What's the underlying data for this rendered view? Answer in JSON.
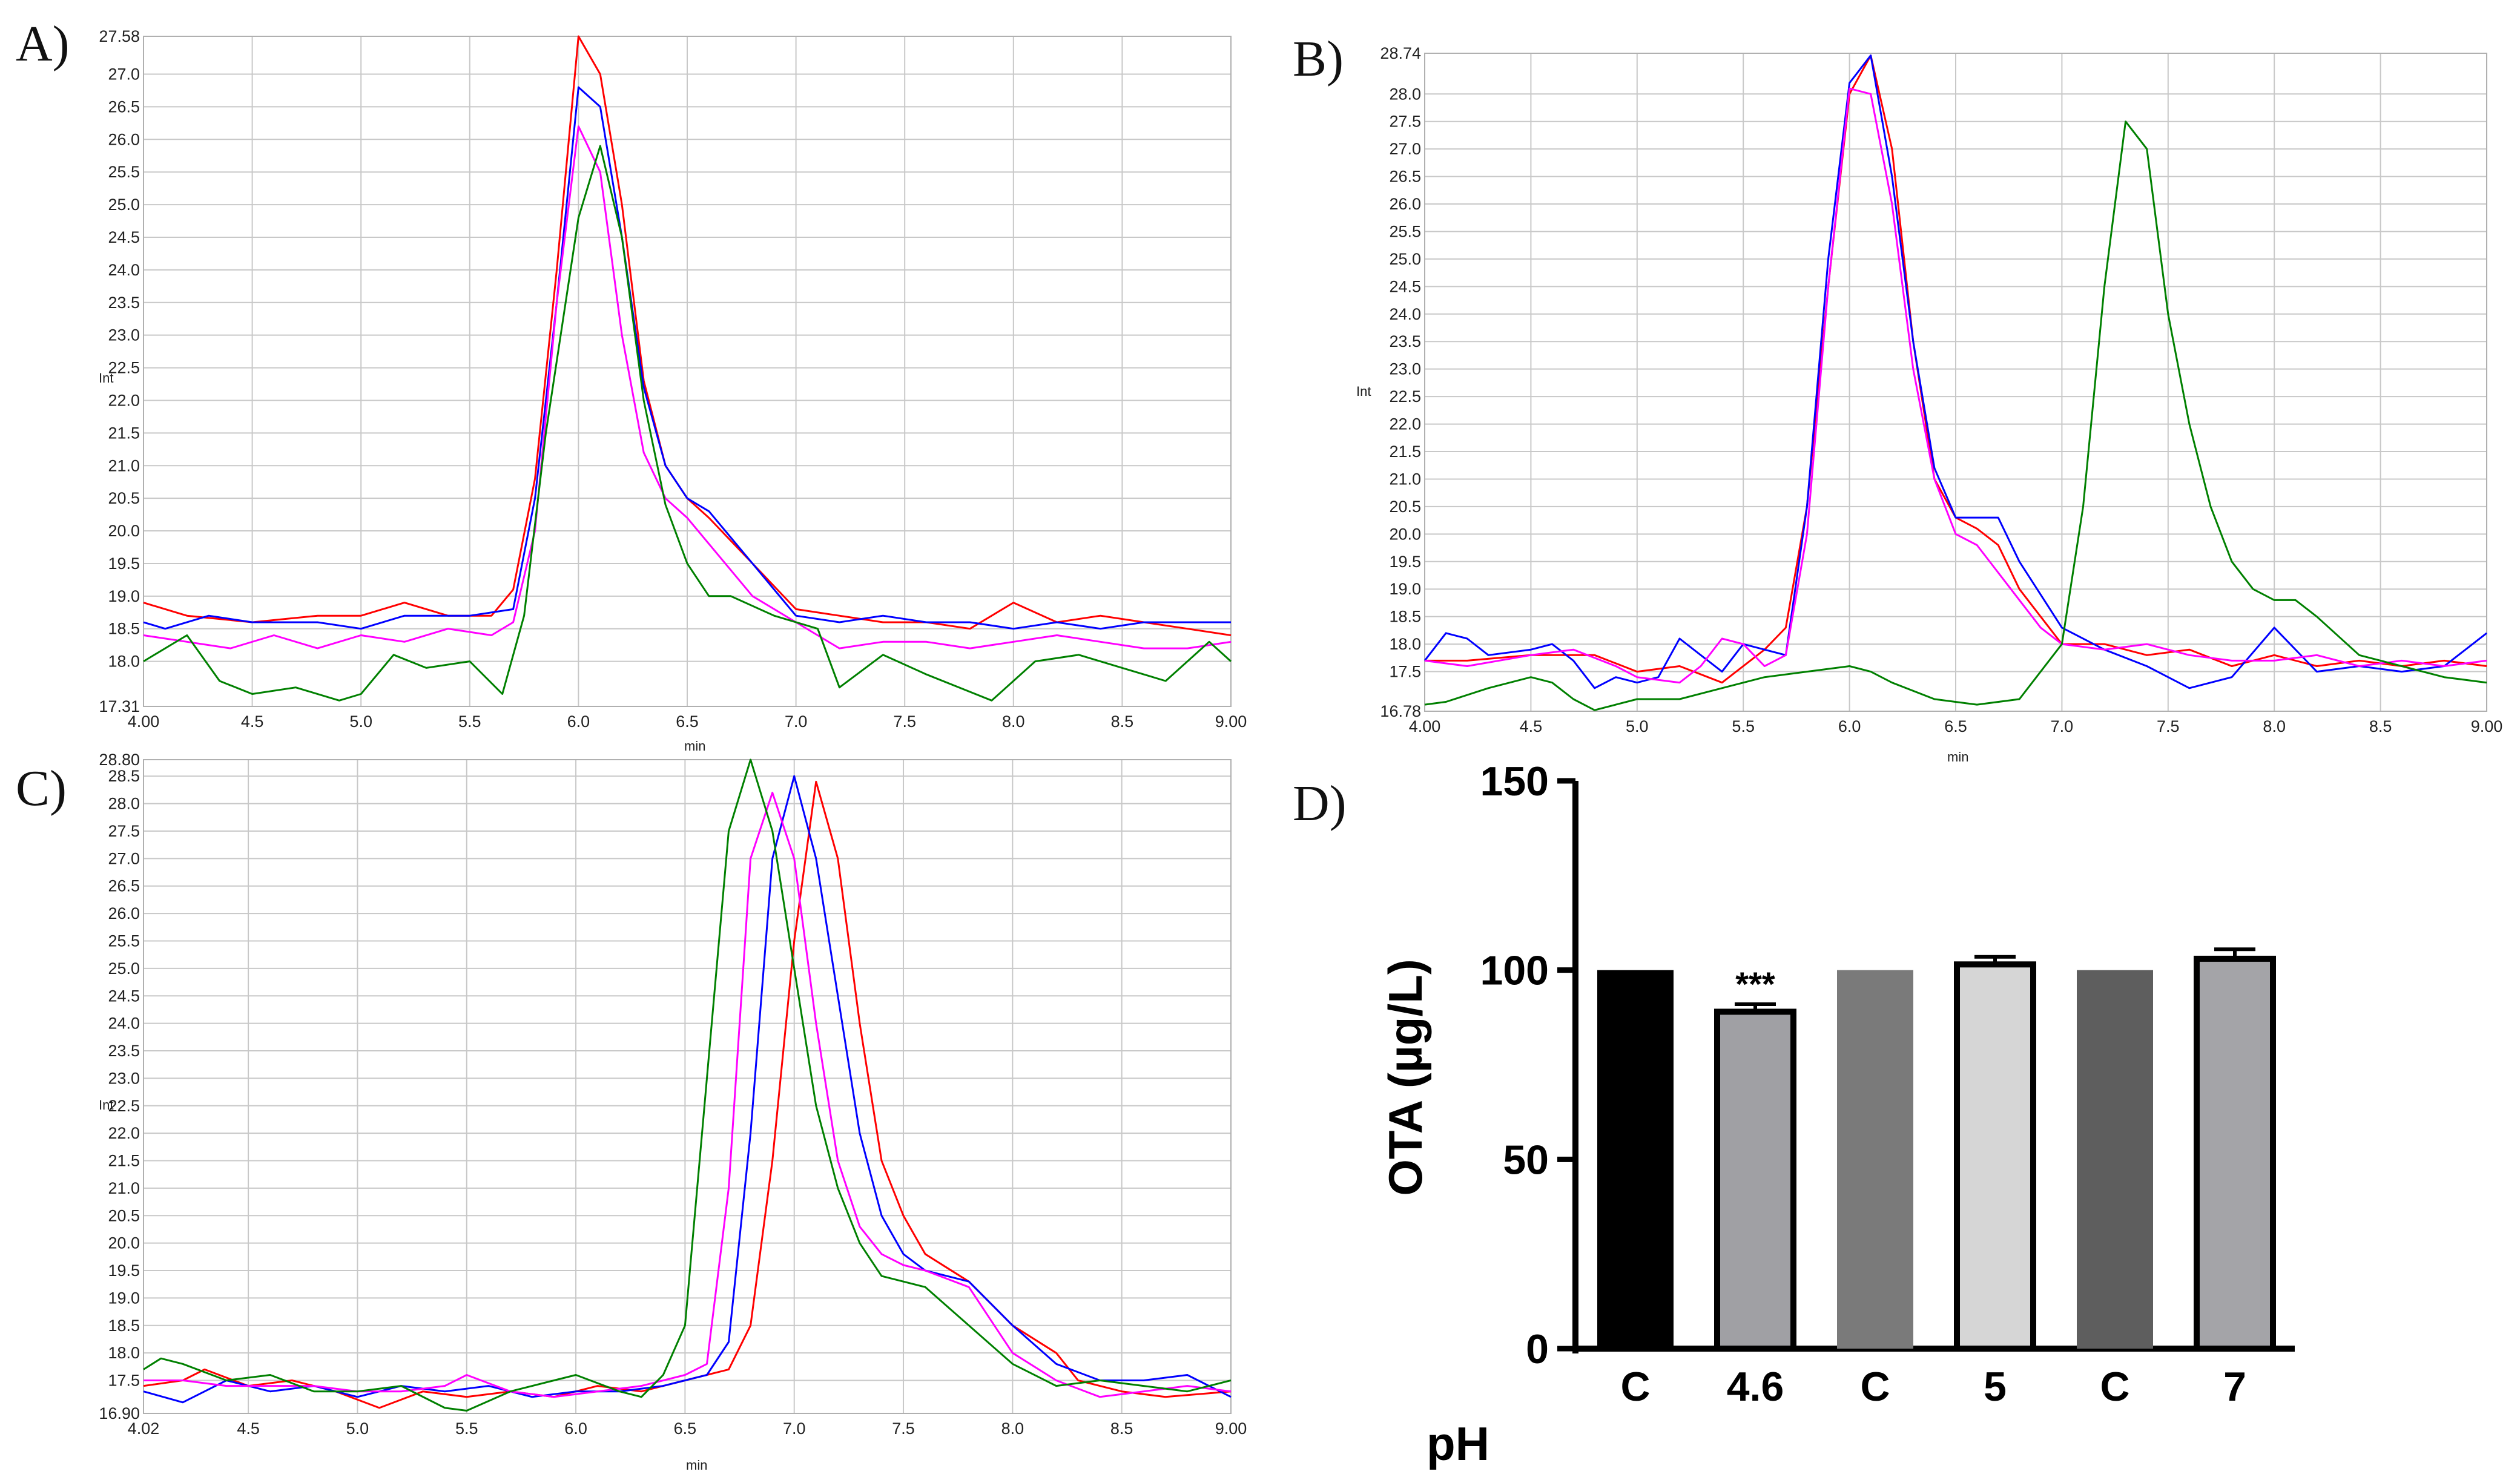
{
  "chart_data": [
    {
      "type": "line",
      "panel_label": "A)",
      "ylabel": "Int",
      "xlabel": "min",
      "xlim": [
        4.0,
        9.0
      ],
      "ylim": [
        17.31,
        27.58
      ],
      "x_tick_labels": [
        "4.00",
        "4.5",
        "5.0",
        "5.5",
        "6.0",
        "6.5",
        "7.0",
        "7.5",
        "8.0",
        "8.5",
        "9.00"
      ],
      "y_tick_labels": [
        "27.58",
        "27.0",
        "26.5",
        "26.0",
        "25.5",
        "25.0",
        "24.5",
        "24.0",
        "23.5",
        "23.0",
        "22.5",
        "22.0",
        "21.5",
        "21.0",
        "20.5",
        "20.0",
        "19.5",
        "19.0",
        "18.5",
        "18.0",
        "17.31"
      ],
      "series": [
        {
          "name": "red",
          "color": "#ff0000",
          "x": [
            4.0,
            4.2,
            4.5,
            4.8,
            5.0,
            5.2,
            5.4,
            5.6,
            5.7,
            5.8,
            5.9,
            6.0,
            6.1,
            6.2,
            6.3,
            6.4,
            6.5,
            6.6,
            6.8,
            7.0,
            7.2,
            7.4,
            7.6,
            7.8,
            8.0,
            8.2,
            8.4,
            8.6,
            8.8,
            9.0
          ],
          "y": [
            18.9,
            18.7,
            18.6,
            18.7,
            18.7,
            18.9,
            18.7,
            18.7,
            19.1,
            20.8,
            24.0,
            27.58,
            27.0,
            25.0,
            22.3,
            21.0,
            20.5,
            20.2,
            19.5,
            18.8,
            18.7,
            18.6,
            18.6,
            18.5,
            18.9,
            18.6,
            18.7,
            18.6,
            18.5,
            18.4
          ]
        },
        {
          "name": "blue",
          "color": "#0000ff",
          "x": [
            4.0,
            4.1,
            4.3,
            4.5,
            4.8,
            5.0,
            5.2,
            5.5,
            5.7,
            5.8,
            5.9,
            6.0,
            6.1,
            6.2,
            6.3,
            6.4,
            6.5,
            6.6,
            6.8,
            7.0,
            7.2,
            7.4,
            7.6,
            7.8,
            8.0,
            8.2,
            8.4,
            8.6,
            8.8,
            9.0
          ],
          "y": [
            18.6,
            18.5,
            18.7,
            18.6,
            18.6,
            18.5,
            18.7,
            18.7,
            18.8,
            20.5,
            23.5,
            26.8,
            26.5,
            24.5,
            22.2,
            21.0,
            20.5,
            20.3,
            19.5,
            18.7,
            18.6,
            18.7,
            18.6,
            18.6,
            18.5,
            18.6,
            18.5,
            18.6,
            18.6,
            18.6
          ]
        },
        {
          "name": "magenta",
          "color": "#ff00ff",
          "x": [
            4.0,
            4.2,
            4.4,
            4.6,
            4.8,
            5.0,
            5.2,
            5.4,
            5.6,
            5.7,
            5.8,
            5.9,
            6.0,
            6.1,
            6.2,
            6.3,
            6.4,
            6.5,
            6.6,
            6.8,
            7.0,
            7.2,
            7.4,
            7.6,
            7.8,
            8.0,
            8.2,
            8.4,
            8.6,
            8.8,
            9.0
          ],
          "y": [
            18.4,
            18.3,
            18.2,
            18.4,
            18.2,
            18.4,
            18.3,
            18.5,
            18.4,
            18.6,
            20.0,
            23.5,
            26.2,
            25.5,
            23.0,
            21.2,
            20.5,
            20.2,
            19.8,
            19.0,
            18.6,
            18.2,
            18.3,
            18.3,
            18.2,
            18.3,
            18.4,
            18.3,
            18.2,
            18.2,
            18.3
          ]
        },
        {
          "name": "green",
          "color": "#008000",
          "x": [
            4.0,
            4.2,
            4.35,
            4.5,
            4.7,
            4.9,
            5.0,
            5.15,
            5.3,
            5.5,
            5.65,
            5.75,
            5.85,
            6.0,
            6.1,
            6.2,
            6.3,
            6.4,
            6.5,
            6.6,
            6.7,
            6.9,
            7.1,
            7.2,
            7.4,
            7.6,
            7.9,
            8.1,
            8.3,
            8.5,
            8.7,
            8.9,
            9.0
          ],
          "y": [
            18.0,
            18.4,
            17.7,
            17.5,
            17.6,
            17.4,
            17.5,
            18.1,
            17.9,
            18.0,
            17.5,
            18.7,
            21.5,
            24.8,
            25.9,
            24.5,
            22.0,
            20.4,
            19.5,
            19.0,
            19.0,
            18.7,
            18.5,
            17.6,
            18.1,
            17.8,
            17.4,
            18.0,
            18.1,
            17.9,
            17.7,
            18.3,
            18.0
          ]
        }
      ]
    },
    {
      "type": "line",
      "panel_label": "B)",
      "ylabel": "Int",
      "xlabel": "min",
      "xlim": [
        4.0,
        9.0
      ],
      "ylim": [
        16.78,
        28.74
      ],
      "x_tick_labels": [
        "4.00",
        "4.5",
        "5.0",
        "5.5",
        "6.0",
        "6.5",
        "7.0",
        "7.5",
        "8.0",
        "8.5",
        "9.00"
      ],
      "y_tick_labels": [
        "28.74",
        "28.0",
        "27.5",
        "27.0",
        "26.5",
        "26.0",
        "25.5",
        "25.0",
        "24.5",
        "24.0",
        "23.5",
        "23.0",
        "22.5",
        "22.0",
        "21.5",
        "21.0",
        "20.5",
        "20.0",
        "19.5",
        "19.0",
        "18.5",
        "18.0",
        "17.5",
        "16.78"
      ],
      "series": [
        {
          "name": "red",
          "color": "#ff0000",
          "x": [
            4.0,
            4.2,
            4.5,
            4.8,
            5.0,
            5.2,
            5.4,
            5.6,
            5.7,
            5.8,
            5.9,
            6.0,
            6.1,
            6.2,
            6.3,
            6.4,
            6.5,
            6.6,
            6.7,
            6.8,
            6.9,
            7.0,
            7.2,
            7.4,
            7.6,
            7.8,
            8.0,
            8.2,
            8.4,
            8.6,
            8.8,
            9.0
          ],
          "y": [
            17.7,
            17.7,
            17.8,
            17.8,
            17.5,
            17.6,
            17.3,
            17.9,
            18.3,
            20.5,
            24.5,
            28.0,
            28.7,
            27.0,
            23.5,
            21.0,
            20.3,
            20.1,
            19.8,
            19.0,
            18.5,
            18.0,
            18.0,
            17.8,
            17.9,
            17.6,
            17.8,
            17.6,
            17.7,
            17.6,
            17.7,
            17.6
          ]
        },
        {
          "name": "blue",
          "color": "#0000ff",
          "x": [
            4.0,
            4.1,
            4.2,
            4.3,
            4.5,
            4.6,
            4.7,
            4.8,
            4.9,
            5.0,
            5.1,
            5.2,
            5.3,
            5.4,
            5.5,
            5.6,
            5.7,
            5.8,
            5.9,
            6.0,
            6.1,
            6.2,
            6.3,
            6.4,
            6.5,
            6.6,
            6.7,
            6.8,
            6.9,
            7.0,
            7.2,
            7.4,
            7.6,
            7.8,
            8.0,
            8.2,
            8.4,
            8.6,
            8.8,
            9.0
          ],
          "y": [
            17.7,
            18.2,
            18.1,
            17.8,
            17.9,
            18.0,
            17.7,
            17.2,
            17.4,
            17.3,
            17.4,
            18.1,
            17.8,
            17.5,
            18.0,
            17.9,
            17.8,
            20.5,
            25.0,
            28.2,
            28.7,
            26.5,
            23.5,
            21.2,
            20.3,
            20.3,
            20.3,
            19.5,
            18.9,
            18.3,
            17.9,
            17.6,
            17.2,
            17.4,
            18.3,
            17.5,
            17.6,
            17.5,
            17.6,
            18.2
          ]
        },
        {
          "name": "magenta",
          "color": "#ff00ff",
          "x": [
            4.0,
            4.2,
            4.5,
            4.7,
            4.9,
            5.0,
            5.2,
            5.3,
            5.4,
            5.5,
            5.6,
            5.7,
            5.8,
            5.9,
            6.0,
            6.1,
            6.2,
            6.3,
            6.4,
            6.5,
            6.6,
            6.7,
            6.8,
            6.9,
            7.0,
            7.2,
            7.4,
            7.6,
            7.8,
            8.0,
            8.2,
            8.4,
            8.6,
            8.8,
            9.0
          ],
          "y": [
            17.7,
            17.6,
            17.8,
            17.9,
            17.6,
            17.4,
            17.3,
            17.6,
            18.1,
            18.0,
            17.6,
            17.8,
            20.0,
            24.5,
            28.1,
            28.0,
            26.0,
            23.0,
            21.0,
            20.0,
            19.8,
            19.3,
            18.8,
            18.3,
            18.0,
            17.9,
            18.0,
            17.8,
            17.7,
            17.7,
            17.8,
            17.6,
            17.7,
            17.6,
            17.7
          ]
        },
        {
          "name": "green",
          "color": "#008000",
          "x": [
            4.0,
            4.1,
            4.3,
            4.5,
            4.6,
            4.7,
            4.8,
            4.9,
            5.0,
            5.2,
            5.4,
            5.6,
            5.8,
            6.0,
            6.1,
            6.2,
            6.4,
            6.6,
            6.8,
            7.0,
            7.1,
            7.2,
            7.3,
            7.4,
            7.5,
            7.6,
            7.7,
            7.8,
            7.9,
            8.0,
            8.1,
            8.2,
            8.4,
            8.6,
            8.8,
            9.0
          ],
          "y": [
            16.9,
            16.95,
            17.2,
            17.4,
            17.3,
            17.0,
            16.8,
            16.9,
            17.0,
            17.0,
            17.2,
            17.4,
            17.5,
            17.6,
            17.5,
            17.3,
            17.0,
            16.9,
            17.0,
            18.0,
            20.5,
            24.5,
            27.5,
            27.0,
            24.0,
            22.0,
            20.5,
            19.5,
            19.0,
            18.8,
            18.8,
            18.5,
            17.8,
            17.6,
            17.4,
            17.3
          ]
        }
      ]
    },
    {
      "type": "line",
      "panel_label": "C)",
      "ylabel": "Int",
      "xlabel": "min",
      "xlim": [
        4.02,
        9.0
      ],
      "ylim": [
        16.9,
        28.8
      ],
      "x_tick_labels": [
        "4.02",
        "4.5",
        "5.0",
        "5.5",
        "6.0",
        "6.5",
        "7.0",
        "7.5",
        "8.0",
        "8.5",
        "9.00"
      ],
      "y_tick_labels": [
        "28.80",
        "28.5",
        "28.0",
        "27.5",
        "27.0",
        "26.5",
        "26.0",
        "25.5",
        "25.0",
        "24.5",
        "24.0",
        "23.5",
        "23.0",
        "22.5",
        "22.0",
        "21.5",
        "21.0",
        "20.5",
        "20.0",
        "19.5",
        "19.0",
        "18.5",
        "18.0",
        "17.5",
        "16.90"
      ],
      "series": [
        {
          "name": "red",
          "color": "#ff0000",
          "x": [
            4.02,
            4.2,
            4.3,
            4.5,
            4.7,
            4.9,
            5.1,
            5.3,
            5.5,
            5.7,
            5.9,
            6.1,
            6.3,
            6.5,
            6.7,
            6.8,
            6.9,
            7.0,
            7.1,
            7.2,
            7.3,
            7.4,
            7.5,
            7.6,
            7.8,
            8.0,
            8.2,
            8.3,
            8.5,
            8.7,
            9.0
          ],
          "y": [
            17.4,
            17.5,
            17.7,
            17.4,
            17.5,
            17.3,
            17.0,
            17.3,
            17.2,
            17.3,
            17.2,
            17.4,
            17.3,
            17.5,
            17.7,
            18.5,
            21.5,
            25.5,
            28.4,
            27.0,
            24.0,
            21.5,
            20.5,
            19.8,
            19.3,
            18.5,
            18.0,
            17.5,
            17.3,
            17.2,
            17.3
          ]
        },
        {
          "name": "blue",
          "color": "#0000ff",
          "x": [
            4.02,
            4.2,
            4.4,
            4.6,
            4.8,
            5.0,
            5.2,
            5.4,
            5.6,
            5.8,
            6.0,
            6.2,
            6.4,
            6.5,
            6.6,
            6.7,
            6.8,
            6.9,
            7.0,
            7.1,
            7.2,
            7.3,
            7.4,
            7.5,
            7.6,
            7.8,
            8.0,
            8.2,
            8.4,
            8.6,
            8.8,
            9.0
          ],
          "y": [
            17.3,
            17.1,
            17.5,
            17.3,
            17.4,
            17.2,
            17.4,
            17.3,
            17.4,
            17.2,
            17.3,
            17.3,
            17.4,
            17.5,
            17.6,
            18.2,
            22.0,
            27.0,
            28.5,
            27.0,
            24.5,
            22.0,
            20.5,
            19.8,
            19.5,
            19.3,
            18.5,
            17.8,
            17.5,
            17.5,
            17.6,
            17.2
          ]
        },
        {
          "name": "magenta",
          "color": "#ff00ff",
          "x": [
            4.02,
            4.2,
            4.4,
            4.6,
            4.8,
            5.0,
            5.2,
            5.4,
            5.5,
            5.7,
            5.9,
            6.1,
            6.3,
            6.5,
            6.6,
            6.7,
            6.8,
            6.9,
            7.0,
            7.1,
            7.2,
            7.3,
            7.4,
            7.5,
            7.6,
            7.8,
            8.0,
            8.2,
            8.4,
            8.6,
            8.8,
            9.0
          ],
          "y": [
            17.5,
            17.5,
            17.4,
            17.4,
            17.4,
            17.3,
            17.3,
            17.4,
            17.6,
            17.3,
            17.2,
            17.3,
            17.4,
            17.6,
            17.8,
            21.0,
            27.0,
            28.2,
            27.0,
            24.0,
            21.5,
            20.3,
            19.8,
            19.6,
            19.5,
            19.2,
            18.0,
            17.5,
            17.2,
            17.3,
            17.4,
            17.3
          ]
        },
        {
          "name": "green",
          "color": "#008000",
          "x": [
            4.02,
            4.1,
            4.2,
            4.4,
            4.6,
            4.8,
            5.0,
            5.2,
            5.4,
            5.5,
            5.7,
            5.9,
            6.0,
            6.2,
            6.3,
            6.4,
            6.5,
            6.6,
            6.7,
            6.8,
            6.9,
            7.0,
            7.1,
            7.2,
            7.3,
            7.4,
            7.6,
            7.8,
            8.0,
            8.2,
            8.4,
            8.6,
            8.8,
            9.0
          ],
          "y": [
            17.7,
            17.9,
            17.8,
            17.5,
            17.6,
            17.3,
            17.3,
            17.4,
            17.0,
            16.95,
            17.3,
            17.5,
            17.6,
            17.3,
            17.2,
            17.6,
            18.5,
            23.0,
            27.5,
            28.8,
            27.5,
            25.0,
            22.5,
            21.0,
            20.0,
            19.4,
            19.2,
            18.5,
            17.8,
            17.4,
            17.5,
            17.4,
            17.3,
            17.5
          ]
        }
      ]
    },
    {
      "type": "bar",
      "panel_label": "D)",
      "xlabel": "pH",
      "ylabel": "OTA (µg/L)",
      "ylim": [
        0,
        150
      ],
      "y_ticks": [
        0,
        50,
        100,
        150
      ],
      "categories": [
        "C",
        "4.6",
        "C",
        "5",
        "C",
        "7"
      ],
      "values": [
        100,
        89,
        100,
        101.5,
        100,
        103
      ],
      "errors": [
        0,
        2,
        0,
        2,
        0,
        2.5
      ],
      "annotations": [
        {
          "category_index": 1,
          "text": "***"
        }
      ],
      "bar_colors": [
        "#000000",
        "#a0a0a4",
        "#7a7a7a",
        "#d6d6d6",
        "#5e5e5e",
        "#a4a4a8"
      ]
    }
  ]
}
